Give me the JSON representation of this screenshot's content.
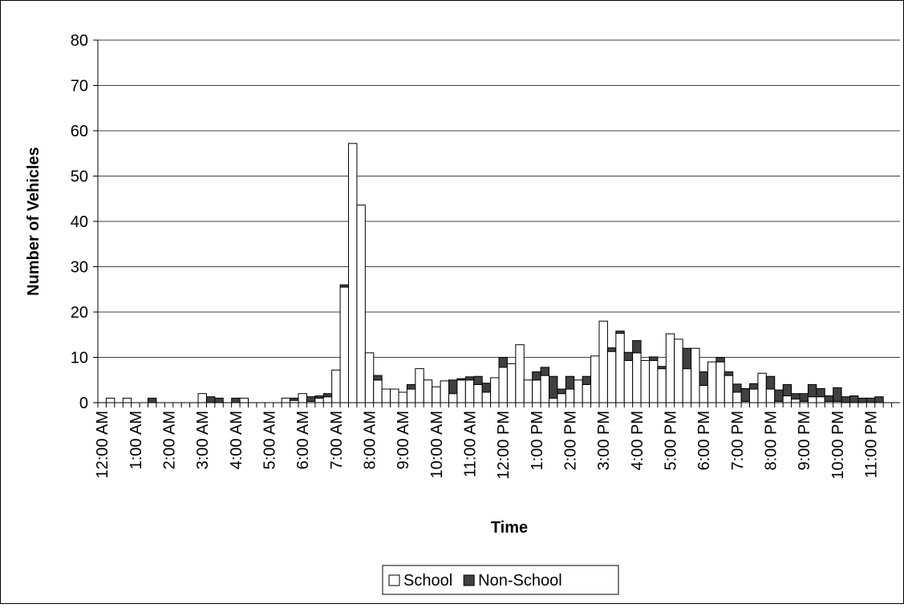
{
  "chart_data": {
    "type": "stacked-bar",
    "x_label": "Time",
    "y_label": "Number of Vehicles",
    "categories": [
      "12:00 AM",
      null,
      null,
      null,
      "1:00 AM",
      null,
      null,
      null,
      "2:00 AM",
      null,
      null,
      null,
      "3:00 AM",
      null,
      null,
      null,
      "4:00 AM",
      null,
      null,
      null,
      "5:00 AM",
      null,
      null,
      null,
      "6:00 AM",
      null,
      null,
      null,
      "7:00 AM",
      null,
      null,
      null,
      "8:00 AM",
      null,
      null,
      null,
      "9:00 AM",
      null,
      null,
      null,
      "10:00 AM",
      null,
      null,
      null,
      "11:00 AM",
      null,
      null,
      null,
      "12:00 PM",
      null,
      null,
      null,
      "1:00 PM",
      null,
      null,
      null,
      "2:00 PM",
      null,
      null,
      null,
      "3:00 PM",
      null,
      null,
      null,
      "4:00 PM",
      null,
      null,
      null,
      "5:00 PM",
      null,
      null,
      null,
      "6:00 PM",
      null,
      null,
      null,
      "7:00 PM",
      null,
      null,
      null,
      "8:00 PM",
      null,
      null,
      null,
      "9:00 PM",
      null,
      null,
      null,
      "10:00 PM",
      null,
      null,
      null,
      "11:00 PM",
      null,
      null,
      null
    ],
    "series": [
      {
        "name": "School",
        "color": "#ffffff",
        "values": [
          0,
          1,
          0,
          1,
          0,
          0,
          0,
          0,
          0,
          0,
          0,
          0,
          2,
          0,
          0,
          0,
          0,
          1,
          0,
          0,
          0,
          0,
          1,
          0.5,
          2,
          0.3,
          1,
          1.3,
          7.2,
          25.5,
          57.2,
          43.6,
          11,
          5,
          3,
          3,
          2.3,
          3,
          7.5,
          5,
          3.5,
          4.8,
          2,
          5,
          5,
          4,
          2.3,
          5.5,
          7.8,
          8.6,
          12.8,
          5,
          5,
          6,
          1,
          2,
          3,
          5,
          4,
          10.3,
          18,
          11.3,
          15.3,
          9.3,
          11,
          9.3,
          9.3,
          7.5,
          15.2,
          14,
          7.5,
          12,
          3.8,
          9,
          9,
          6,
          2.3,
          0.3,
          3,
          6.5,
          3,
          0.3,
          1.5,
          0.8,
          0.3,
          1.3,
          1.3,
          0.3,
          0.3,
          0,
          0,
          0,
          0,
          0,
          0,
          0
        ]
      },
      {
        "name": "Non-School",
        "color": "#404040",
        "values": [
          0,
          0,
          0,
          0,
          0,
          0,
          1,
          0,
          0,
          0,
          0,
          0,
          0,
          1.3,
          1,
          0,
          1,
          0,
          0,
          0,
          0,
          0,
          0,
          0.5,
          0,
          1,
          0.5,
          0.7,
          0,
          0.5,
          0,
          0,
          0,
          1,
          0,
          0,
          0,
          1,
          0,
          0,
          0,
          0,
          3,
          0.3,
          0.7,
          1.8,
          2,
          0,
          2.2,
          0,
          0,
          0,
          1.8,
          1.8,
          4.8,
          1,
          2.8,
          0,
          1.8,
          0,
          0,
          0.8,
          0.5,
          1.8,
          2.7,
          0,
          0.8,
          0.5,
          0,
          0,
          4.5,
          0,
          3,
          0,
          1,
          0.8,
          1.8,
          2.8,
          1.2,
          0,
          2.8,
          2.5,
          2.5,
          1.2,
          1.7,
          2.7,
          1.8,
          1.2,
          3,
          1.3,
          1.5,
          1,
          1,
          1.3,
          0,
          0
        ]
      }
    ],
    "ylim": [
      0,
      80
    ],
    "yticks": [
      0,
      10,
      20,
      30,
      40,
      50,
      60,
      70,
      80
    ],
    "grid": true,
    "legend": "bottom"
  }
}
